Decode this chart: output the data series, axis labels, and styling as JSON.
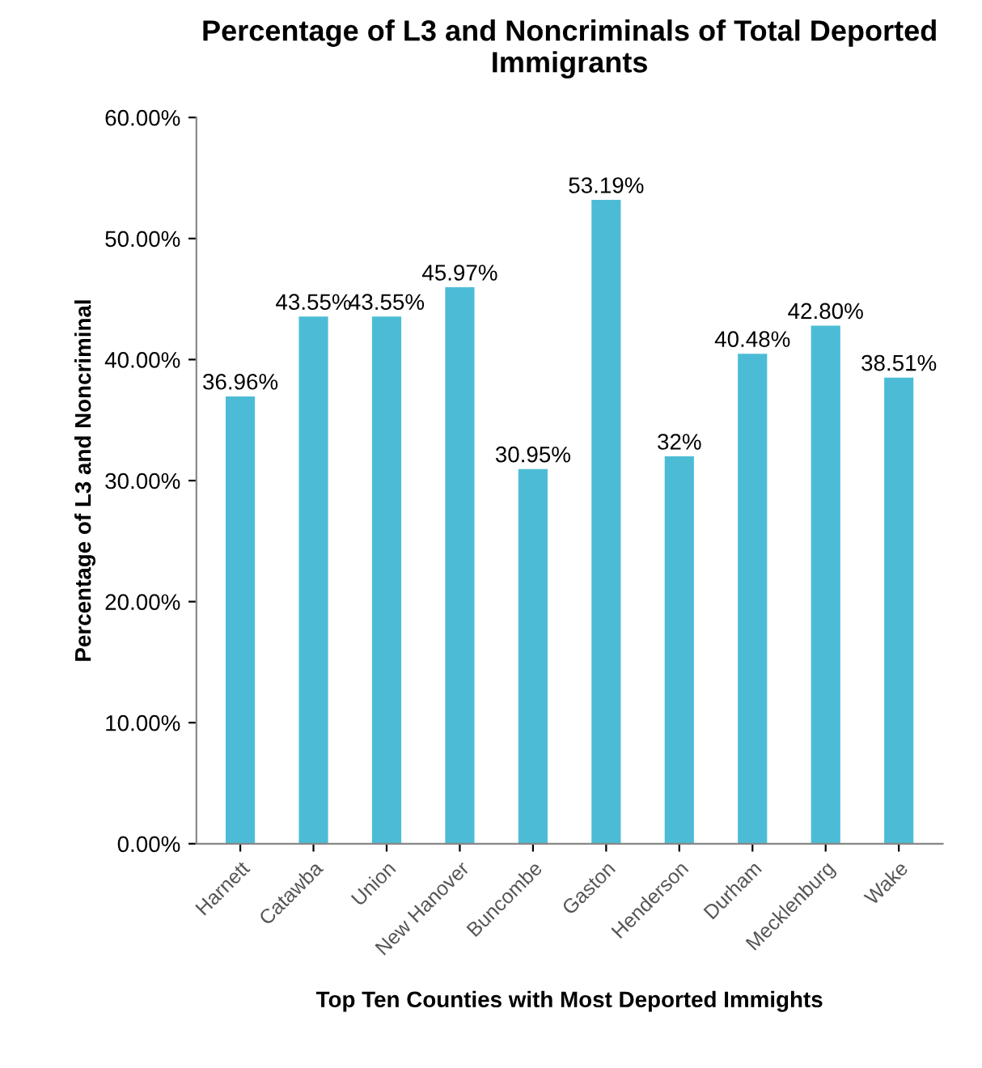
{
  "chart_data": {
    "type": "bar",
    "title": "Percentage of L3 and Noncriminals of Total Deported Immigrants",
    "xlabel": "Top Ten Counties with Most Deported Immights",
    "ylabel": "Percentage of L3 and Noncriminal",
    "categories": [
      "Harnett",
      "Catawba",
      "Union",
      "New Hanover",
      "Buncombe",
      "Gaston",
      "Henderson",
      "Durham",
      "Mecklenburg",
      "Wake"
    ],
    "values": [
      36.96,
      43.55,
      43.55,
      45.97,
      30.95,
      53.19,
      32,
      40.48,
      42.8,
      38.51
    ],
    "value_labels": [
      "36.96%",
      "43.55%",
      "43.55%",
      "45.97%",
      "30.95%",
      "53.19%",
      "32%",
      "40.48%",
      "42.80%",
      "38.51%"
    ],
    "color": "#4cbcd6",
    "ylim": [
      0,
      60
    ],
    "yticks": [
      {
        "value": 0,
        "label": "0.00%"
      },
      {
        "value": 10,
        "label": "10.00%"
      },
      {
        "value": 20,
        "label": "20.00%"
      },
      {
        "value": 30,
        "label": "30.00%"
      },
      {
        "value": 40,
        "label": "40.00%"
      },
      {
        "value": 50,
        "label": "50.00%"
      },
      {
        "value": 60,
        "label": "60.00%"
      }
    ],
    "grid": false,
    "legend": false
  }
}
